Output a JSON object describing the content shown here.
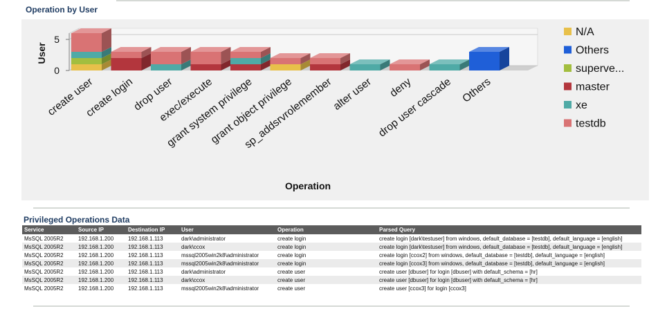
{
  "chart_section_title": "Operation by User",
  "table_section_title": "Privileged Operations Data",
  "colors": {
    "N/A": "#e8c04a",
    "Others": "#1f5fd8",
    "superve...": "#a3be3f",
    "master": "#b3363d",
    "xe": "#4faaa6",
    "testdb": "#d97374"
  },
  "chart_data": {
    "type": "bar",
    "stacked": true,
    "three_d": true,
    "title": "",
    "xlabel": "Operation",
    "ylabel": "User",
    "ylim": [
      0,
      6
    ],
    "yticks": [
      0,
      5
    ],
    "grid": true,
    "legend_position": "right",
    "categories": [
      "create user",
      "create login",
      "drop user",
      "exec/execute",
      "grant system privilege",
      "grant object privilege",
      "sp_addsrvrolemember",
      "alter user",
      "deny",
      "drop user cascade",
      "Others"
    ],
    "series": [
      {
        "name": "N/A",
        "values": [
          1,
          0,
          0,
          0,
          0,
          1,
          0,
          0,
          0,
          0,
          0
        ]
      },
      {
        "name": "Others",
        "values": [
          0,
          0,
          0,
          0,
          0,
          0,
          0,
          0,
          0,
          0,
          3
        ]
      },
      {
        "name": "superve...",
        "values": [
          1,
          0,
          0,
          0,
          0,
          0,
          0,
          0,
          0,
          0,
          0
        ]
      },
      {
        "name": "master",
        "values": [
          0,
          2,
          0,
          1,
          1,
          0,
          1,
          0,
          0,
          0,
          0
        ]
      },
      {
        "name": "xe",
        "values": [
          1,
          0,
          1,
          0,
          1,
          0,
          0,
          1,
          0,
          1,
          0
        ]
      },
      {
        "name": "testdb",
        "values": [
          3,
          1,
          2,
          2,
          1,
          1,
          1,
          0,
          1,
          0,
          0
        ]
      }
    ]
  },
  "table": {
    "columns": [
      "Service",
      "Source IP",
      "Destination IP",
      "User",
      "Operation",
      "Parsed Query"
    ],
    "rows": [
      [
        "MsSQL 2005R2",
        "192.168.1.200",
        "192.168.1.113",
        "dark\\administrator",
        "create login",
        "create login [dark\\testuser] from windows, default_database = [testdb], default_language = [english]"
      ],
      [
        "MsSQL 2005R2",
        "192.168.1.200",
        "192.168.1.113",
        "dark\\ccox",
        "create login",
        "create login [dark\\testuser] from windows, default_database = [testdb], default_language = [english]"
      ],
      [
        "MsSQL 2005R2",
        "192.168.1.200",
        "192.168.1.113",
        "mssql2005win2k8\\administrator",
        "create login",
        "create login [ccox2] from windows, default_database = [testdb], default_language = [english]"
      ],
      [
        "MsSQL 2005R2",
        "192.168.1.200",
        "192.168.1.113",
        "mssql2005win2k8\\administrator",
        "create login",
        "create login [ccox3] from windows, default_database = [testdb], default_language = [english]"
      ],
      [
        "MsSQL 2005R2",
        "192.168.1.200",
        "192.168.1.113",
        "dark\\administrator",
        "create user",
        "create user [dbuser] for login [dbuser] with default_schema = [hr]"
      ],
      [
        "MsSQL 2005R2",
        "192.168.1.200",
        "192.168.1.113",
        "dark\\ccox",
        "create user",
        "create user [dbuser] for login [dbuser] with default_schema = [hr]"
      ],
      [
        "MsSQL 2005R2",
        "192.168.1.200",
        "192.168.1.113",
        "mssql2005win2k8\\administrator",
        "create user",
        "create user [ccox3] for login [ccox3]"
      ]
    ]
  }
}
